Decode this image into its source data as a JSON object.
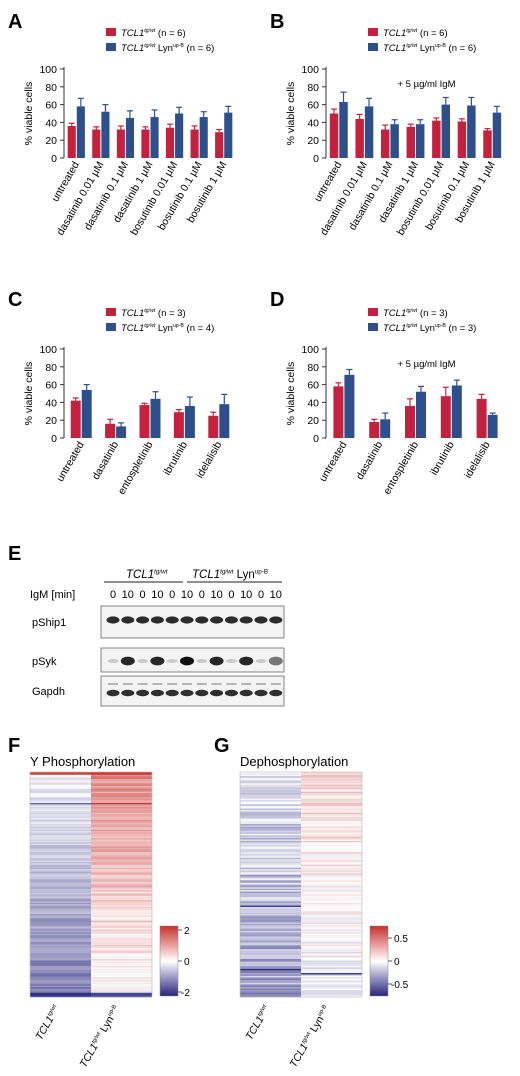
{
  "colors": {
    "wt": "#c4213f",
    "lyn": "#2d4f8c",
    "heat_high": "#c8302b",
    "heat_low": "#27257e"
  },
  "panels": {
    "A": {
      "letter": "A",
      "note": "",
      "legend": [
        {
          "base": "TCL1",
          "sup": "tg/wt",
          "mid": "",
          "sup2": "",
          "tail": " (n = 6)"
        },
        {
          "base": "TCL1",
          "sup": "tg/wt",
          "mid": " Lyn",
          "sup2": "up-B",
          "tail": " (n = 6)"
        }
      ],
      "ylabel": "% viable cells"
    },
    "B": {
      "letter": "B",
      "note": "+ 5 µg/ml IgM",
      "legend": [
        {
          "base": "TCL1",
          "sup": "tg/wt",
          "mid": "",
          "sup2": "",
          "tail": " (n = 6)"
        },
        {
          "base": "TCL1",
          "sup": "tg/wt",
          "mid": " Lyn",
          "sup2": "up-B",
          "tail": " (n = 6)"
        }
      ],
      "ylabel": "% viable cells"
    },
    "C": {
      "letter": "C",
      "note": "",
      "legend": [
        {
          "base": "TCL1",
          "sup": "tg/wt",
          "mid": "",
          "sup2": "",
          "tail": " (n = 3)"
        },
        {
          "base": "TCL1",
          "sup": "tg/wt",
          "mid": " Lyn",
          "sup2": "up-B",
          "tail": " (n = 4)"
        }
      ],
      "ylabel": "% viable cells"
    },
    "D": {
      "letter": "D",
      "note": "+ 5 µg/ml IgM",
      "legend": [
        {
          "base": "TCL1",
          "sup": "tg/wt",
          "mid": "",
          "sup2": "",
          "tail": " (n = 3)"
        },
        {
          "base": "TCL1",
          "sup": "tg/wt",
          "mid": " Lyn",
          "sup2": "up-B",
          "tail": " (n = 3)"
        }
      ],
      "ylabel": "% viable cells"
    },
    "E": {
      "letter": "E",
      "group1": {
        "base": "TCL1",
        "sup": "tg/wt"
      },
      "group2": {
        "base": "TCL1",
        "sup": "tg/wt",
        "mid": " Lyn",
        "sup2": "up-B"
      },
      "igm_label": "IgM [min]",
      "lanes": [
        "0",
        "10",
        "0",
        "10",
        "0",
        "10",
        "0",
        "10",
        "0",
        "10",
        "0",
        "10"
      ],
      "rows": [
        "pShip1",
        "pSyk",
        "Gapdh"
      ]
    },
    "F": {
      "letter": "F",
      "title": "Y Phosphorylation",
      "scale_ticks": [
        "2",
        "0",
        "-2"
      ]
    },
    "G": {
      "letter": "G",
      "title": "Dephosphorylation",
      "scale_ticks": [
        "0.5",
        "0",
        "-0.5"
      ]
    },
    "heat_xlabels": [
      {
        "base": "TCL1",
        "sup": "tg/wt",
        "mid": "",
        "sup2": ""
      },
      {
        "base": "TCL1",
        "sup": "tg/wt",
        "mid": " Lyn",
        "sup2": "up-B"
      }
    ]
  },
  "chart_data": [
    {
      "panel": "A",
      "type": "bar",
      "ylabel": "% viable cells",
      "ylim": [
        0,
        100
      ],
      "yticks": [
        0,
        20,
        40,
        60,
        80,
        100
      ],
      "categories": [
        "untreated",
        "dasatinib 0.01 µM",
        "dasatinib 0.1 µM",
        "dasatinib 1 µM",
        "bosutinib 0.01 µM",
        "bosutinib 0.1 µM",
        "bosutinib 1 µM"
      ],
      "series": [
        {
          "name": "TCL1tg/wt",
          "values": [
            36,
            32,
            32,
            32,
            34,
            32,
            29
          ],
          "errors": [
            3,
            3,
            4,
            3,
            4,
            4,
            3
          ]
        },
        {
          "name": "TCL1tg/wt Lynup-B",
          "values": [
            58,
            52,
            45,
            46,
            50,
            46,
            51
          ],
          "errors": [
            9,
            8,
            8,
            8,
            7,
            6,
            7
          ]
        }
      ]
    },
    {
      "panel": "B",
      "type": "bar",
      "ylabel": "% viable cells",
      "ylim": [
        0,
        100
      ],
      "yticks": [
        0,
        20,
        40,
        60,
        80,
        100
      ],
      "categories": [
        "untreated",
        "dasatinib 0.01 µM",
        "dasatinib 0.1 µM",
        "dasatinib 1 µM",
        "bosutinib 0.01 µM",
        "bosutinib 0.1 µM",
        "bosutinib 1 µM"
      ],
      "series": [
        {
          "name": "TCL1tg/wt",
          "values": [
            50,
            44,
            32,
            35,
            42,
            41,
            31
          ],
          "errors": [
            5,
            5,
            5,
            3,
            3,
            3,
            2
          ]
        },
        {
          "name": "TCL1tg/wt Lynup-B",
          "values": [
            63,
            58,
            38,
            38,
            60,
            59,
            51
          ],
          "errors": [
            11,
            9,
            5,
            5,
            8,
            9,
            7
          ]
        }
      ]
    },
    {
      "panel": "C",
      "type": "bar",
      "ylabel": "% viable cells",
      "ylim": [
        0,
        100
      ],
      "yticks": [
        0,
        20,
        40,
        60,
        80,
        100
      ],
      "categories": [
        "untreated",
        "dasatinib",
        "entospletinib",
        "ibrutinib",
        "idelalisib"
      ],
      "series": [
        {
          "name": "TCL1tg/wt",
          "values": [
            42,
            16,
            37,
            29,
            25
          ],
          "errors": [
            3,
            5,
            2,
            3,
            4
          ]
        },
        {
          "name": "TCL1tg/wt Lynup-B",
          "values": [
            54,
            13,
            44,
            36,
            38
          ],
          "errors": [
            6,
            4,
            8,
            10,
            11
          ]
        }
      ]
    },
    {
      "panel": "D",
      "type": "bar",
      "ylabel": "% viable cells",
      "ylim": [
        0,
        100
      ],
      "yticks": [
        0,
        20,
        40,
        60,
        80,
        100
      ],
      "categories": [
        "untreated",
        "dasatinib",
        "entospletinib",
        "ibrutinib",
        "idelalisib"
      ],
      "series": [
        {
          "name": "TCL1tg/wt",
          "values": [
            58,
            18,
            36,
            47,
            44
          ],
          "errors": [
            4,
            3,
            8,
            10,
            5
          ]
        },
        {
          "name": "TCL1tg/wt Lynup-B",
          "values": [
            71,
            21,
            52,
            59,
            26
          ],
          "errors": [
            6,
            7,
            6,
            6,
            2
          ]
        }
      ]
    },
    {
      "panel": "F",
      "type": "heatmap",
      "columns": 2,
      "color_range": [
        -2,
        2
      ]
    },
    {
      "panel": "G",
      "type": "heatmap",
      "columns": 2,
      "color_range": [
        -0.5,
        0.5
      ]
    }
  ]
}
